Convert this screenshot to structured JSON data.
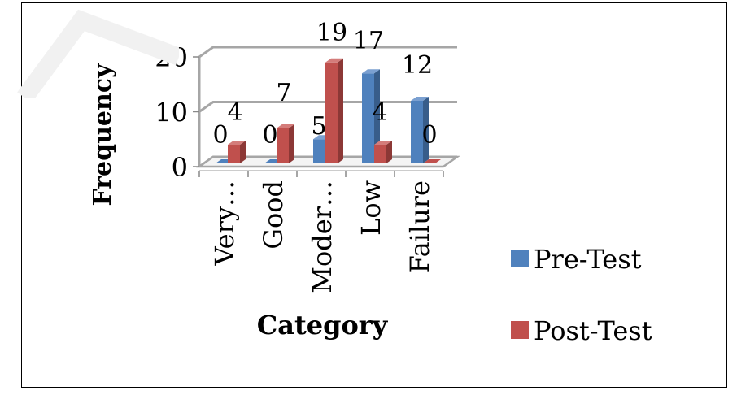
{
  "chart_data": {
    "type": "bar",
    "style": "3d-clustered-column",
    "title": "",
    "xlabel": "Category",
    "ylabel": "Frequency",
    "categories": [
      "Very…",
      "Good",
      "Moder…",
      "Low",
      "Failure"
    ],
    "series": [
      {
        "name": "Pre-Test",
        "color": "#4F81BD",
        "values": [
          0,
          0,
          5,
          17,
          12
        ]
      },
      {
        "name": "Post-Test",
        "color": "#C0504D",
        "values": [
          4,
          7,
          19,
          4,
          0
        ]
      }
    ],
    "data_labels": {
      "pre": [
        "0",
        "0",
        "5",
        "17",
        "12"
      ],
      "post": [
        "4",
        "7",
        "19",
        "4",
        "0"
      ]
    },
    "yticks": [
      "0",
      "10",
      "20"
    ],
    "ylim": [
      0,
      20
    ],
    "grid": true,
    "legend_position": "right"
  },
  "legend": {
    "items": [
      {
        "label": "Pre-Test",
        "color": "#4F81BD"
      },
      {
        "label": "Post-Test",
        "color": "#C0504D"
      }
    ]
  },
  "colors": {
    "pre": "#4F81BD",
    "pre_dark": "#385D8A",
    "pre_top": "#7BA0D1",
    "post": "#C0504D",
    "post_dark": "#8C3836",
    "post_top": "#D47C7A",
    "grid": "#A6A6A6"
  }
}
